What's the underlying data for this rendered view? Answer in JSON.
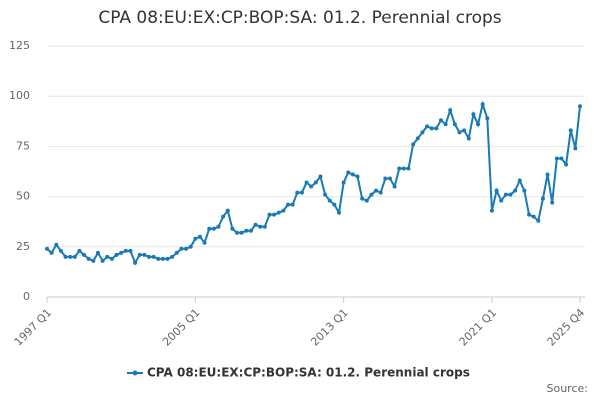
{
  "chart_data": {
    "type": "line",
    "title": "CPA 08:EU:EX:CP:BOP:SA: 01.2. Perennial crops",
    "source": "Source:",
    "categories": [
      "1997 Q1",
      null,
      null,
      null,
      null,
      null,
      null,
      null,
      null,
      null,
      null,
      null,
      null,
      null,
      null,
      null,
      null,
      null,
      null,
      null,
      null,
      null,
      null,
      null,
      null,
      null,
      null,
      null,
      null,
      null,
      null,
      null,
      "2005 Q1",
      null,
      null,
      null,
      null,
      null,
      null,
      null,
      null,
      null,
      null,
      null,
      null,
      null,
      null,
      null,
      null,
      null,
      null,
      null,
      null,
      null,
      null,
      null,
      null,
      null,
      null,
      null,
      null,
      null,
      null,
      null,
      "2013 Q1",
      null,
      null,
      null,
      null,
      null,
      null,
      null,
      null,
      null,
      null,
      null,
      null,
      null,
      null,
      null,
      null,
      null,
      null,
      null,
      null,
      null,
      null,
      null,
      null,
      null,
      null,
      null,
      null,
      null,
      null,
      null,
      "2021 Q1",
      null,
      null,
      null,
      null,
      null,
      null,
      null,
      null,
      null,
      null,
      null,
      null,
      null,
      null,
      null,
      null,
      null,
      null,
      "2025 Q4"
    ],
    "series": [
      {
        "name": "CPA 08:EU:EX:CP:BOP:SA: 01.2. Perennial crops",
        "color": "#1a7ab5",
        "values": [
          24,
          22,
          26,
          23,
          20,
          20,
          20,
          23,
          21,
          19,
          18,
          22,
          18,
          20,
          19,
          21,
          22,
          23,
          23,
          17,
          21,
          21,
          20,
          20,
          19,
          19,
          19,
          20,
          22,
          24,
          24,
          25,
          29,
          30,
          27,
          34,
          34,
          35,
          40,
          43,
          34,
          32,
          32,
          33,
          33,
          36,
          35,
          35,
          41,
          41,
          42,
          43,
          46,
          46,
          52,
          52,
          57,
          55,
          57,
          60,
          51,
          48,
          46,
          42,
          57,
          62,
          61,
          60,
          49,
          48,
          51,
          53,
          52,
          59,
          59,
          55,
          64,
          64,
          64,
          76,
          79,
          82,
          85,
          84,
          84,
          88,
          86,
          93,
          86,
          82,
          83,
          79,
          91,
          86,
          96,
          89,
          43,
          53,
          48,
          51,
          51,
          53,
          58,
          53,
          41,
          40,
          38,
          49,
          61,
          47,
          69,
          69,
          66,
          83,
          74,
          95
        ]
      }
    ],
    "ylim": [
      0,
      125
    ],
    "yticks": [
      0,
      25,
      50,
      75,
      100,
      125
    ],
    "grid": true
  }
}
